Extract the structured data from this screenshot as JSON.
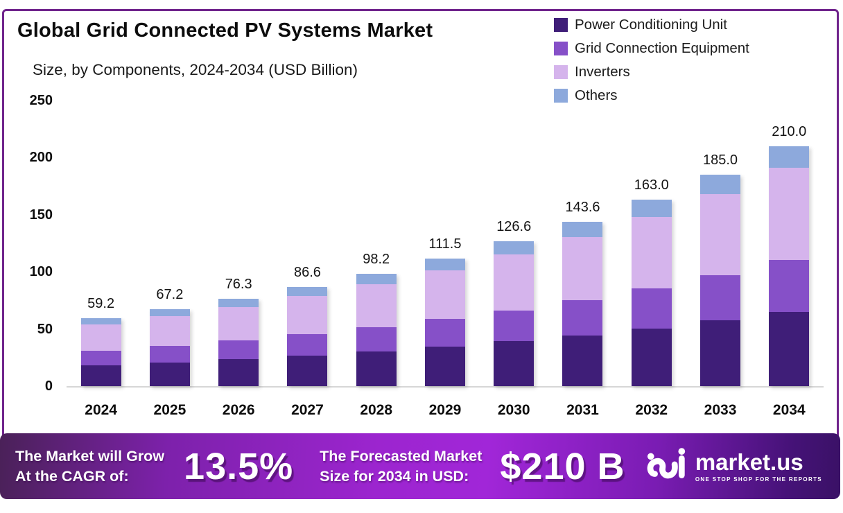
{
  "header": {
    "title": "Global Grid Connected PV Systems Market",
    "subtitle": "Size, by Components, 2024-2034 (USD Billion)"
  },
  "legend": [
    {
      "label": "Power Conditioning Unit",
      "color": "#3F1E78"
    },
    {
      "label": "Grid Connection Equipment",
      "color": "#8650C8"
    },
    {
      "label": "Inverters",
      "color": "#D5B4EC"
    },
    {
      "label": "Others",
      "color": "#8DA9DC"
    }
  ],
  "chart_data": {
    "type": "bar",
    "stacked": true,
    "title": "Global Grid Connected PV Systems Market Size, by Components, 2024-2034 (USD Billion)",
    "xlabel": "",
    "ylabel": "USD Billion",
    "ylim": [
      0,
      250
    ],
    "yticks": [
      0,
      50,
      100,
      150,
      200,
      250
    ],
    "grid": false,
    "legend_position": "top-right",
    "categories": [
      "2024",
      "2025",
      "2026",
      "2027",
      "2028",
      "2029",
      "2030",
      "2031",
      "2032",
      "2033",
      "2034"
    ],
    "totals": [
      59.2,
      67.2,
      76.3,
      86.6,
      98.2,
      111.5,
      126.6,
      143.6,
      163.0,
      185.0,
      210.0
    ],
    "series": [
      {
        "name": "Power Conditioning Unit",
        "color": "#3F1E78",
        "values": [
          18.4,
          20.8,
          23.7,
          26.8,
          30.4,
          34.6,
          39.2,
          44.5,
          50.5,
          57.4,
          65.1
        ]
      },
      {
        "name": "Grid Connection Equipment",
        "color": "#8650C8",
        "values": [
          12.7,
          14.4,
          16.4,
          18.6,
          21.1,
          24.0,
          27.2,
          30.9,
          35.0,
          39.8,
          45.2
        ]
      },
      {
        "name": "Inverters",
        "color": "#D5B4EC",
        "values": [
          22.8,
          25.9,
          29.4,
          33.3,
          37.8,
          42.9,
          48.7,
          55.3,
          62.8,
          71.2,
          80.9
        ]
      },
      {
        "name": "Others",
        "color": "#8DA9DC",
        "values": [
          5.3,
          6.1,
          6.8,
          7.9,
          8.9,
          10.0,
          11.5,
          12.9,
          14.7,
          16.6,
          18.8
        ]
      }
    ]
  },
  "banner": {
    "cagr_label_line1": "The Market will Grow",
    "cagr_label_line2": "At the CAGR of:",
    "cagr_value": "13.5%",
    "forecast_label_line1": "The Forecasted Market",
    "forecast_label_line2": "Size for 2034 in USD:",
    "forecast_value": "$210 B",
    "brand_name": "market.us",
    "brand_tagline": "ONE STOP SHOP FOR THE REPORTS"
  },
  "colors": {
    "card_border": "#70248c",
    "axis_line": "#d6d6d6",
    "banner_gradient_start": "#4a2158",
    "banner_gradient_mid": "#a126d8",
    "banner_gradient_end": "#3a1166"
  }
}
